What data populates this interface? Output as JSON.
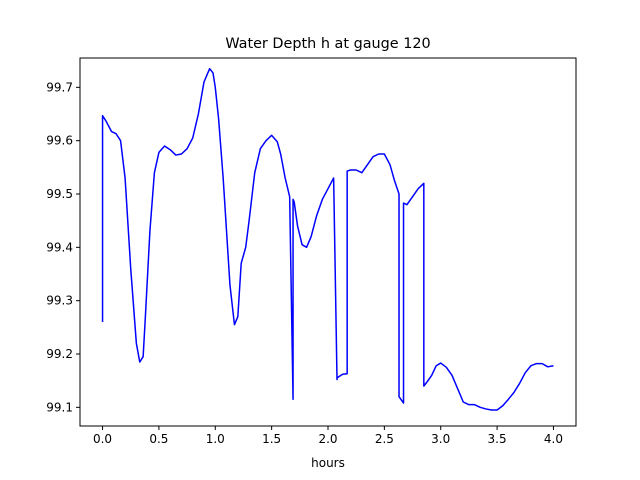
{
  "chart_data": {
    "type": "line",
    "title": "Water Depth h at gauge 120",
    "xlabel": "hours",
    "ylabel": "",
    "xlim": [
      -0.2,
      4.2
    ],
    "ylim": [
      99.065,
      99.755
    ],
    "xticks": [
      0.0,
      0.5,
      1.0,
      1.5,
      2.0,
      2.5,
      3.0,
      3.5,
      4.0
    ],
    "xtick_labels": [
      "0.0",
      "0.5",
      "1.0",
      "1.5",
      "2.0",
      "2.5",
      "3.0",
      "3.5",
      "4.0"
    ],
    "yticks": [
      99.1,
      99.2,
      99.3,
      99.4,
      99.5,
      99.6,
      99.7
    ],
    "ytick_labels": [
      "99.1",
      "99.2",
      "99.3",
      "99.4",
      "99.5",
      "99.6",
      "99.7"
    ],
    "grid": false,
    "line_color": "#0000ff",
    "series": [
      {
        "x": [
          0.0,
          0.0,
          0.03,
          0.08,
          0.12,
          0.16,
          0.2,
          0.25,
          0.3,
          0.33,
          0.36,
          0.38,
          0.42,
          0.46,
          0.5,
          0.55,
          0.6,
          0.65,
          0.7,
          0.75,
          0.8,
          0.85,
          0.9,
          0.95,
          0.98,
          1.0,
          1.03,
          1.07,
          1.1,
          1.13,
          1.17,
          1.2,
          1.23,
          1.27,
          1.3,
          1.35,
          1.4,
          1.45,
          1.5,
          1.55,
          1.58,
          1.62,
          1.66,
          1.69,
          1.69,
          1.7,
          1.73,
          1.77,
          1.81,
          1.85,
          1.9,
          1.95,
          2.0,
          2.05,
          2.08,
          2.08,
          2.1,
          2.13,
          2.17,
          2.17,
          2.2,
          2.25,
          2.3,
          2.35,
          2.4,
          2.45,
          2.5,
          2.55,
          2.59,
          2.63,
          2.63,
          2.67,
          2.67,
          2.7,
          2.75,
          2.8,
          2.85,
          2.85,
          2.88,
          2.92,
          2.96,
          3.0,
          3.05,
          3.1,
          3.15,
          3.2,
          3.25,
          3.3,
          3.35,
          3.4,
          3.45,
          3.5,
          3.55,
          3.6,
          3.65,
          3.7,
          3.75,
          3.8,
          3.85,
          3.9,
          3.95,
          4.0
        ],
        "y": [
          99.26,
          99.647,
          99.637,
          99.617,
          99.613,
          99.6,
          99.53,
          99.36,
          99.22,
          99.185,
          99.195,
          99.27,
          99.43,
          99.54,
          99.578,
          99.59,
          99.583,
          99.573,
          99.575,
          99.585,
          99.605,
          99.65,
          99.71,
          99.735,
          99.727,
          99.7,
          99.64,
          99.53,
          99.43,
          99.33,
          99.255,
          99.27,
          99.37,
          99.4,
          99.45,
          99.54,
          99.585,
          99.6,
          99.61,
          99.598,
          99.575,
          99.53,
          99.495,
          99.115,
          99.49,
          99.485,
          99.44,
          99.405,
          99.4,
          99.42,
          99.46,
          99.49,
          99.51,
          99.53,
          99.152,
          99.155,
          99.158,
          99.162,
          99.163,
          99.543,
          99.545,
          99.545,
          99.54,
          99.555,
          99.57,
          99.575,
          99.575,
          99.555,
          99.525,
          99.5,
          99.12,
          99.108,
          99.483,
          99.48,
          99.495,
          99.51,
          99.52,
          99.14,
          99.148,
          99.16,
          99.178,
          99.183,
          99.175,
          99.16,
          99.135,
          99.11,
          99.105,
          99.105,
          99.1,
          99.097,
          99.095,
          99.095,
          99.103,
          99.115,
          99.128,
          99.145,
          99.165,
          99.178,
          99.182,
          99.182,
          99.176,
          99.178
        ]
      }
    ]
  }
}
